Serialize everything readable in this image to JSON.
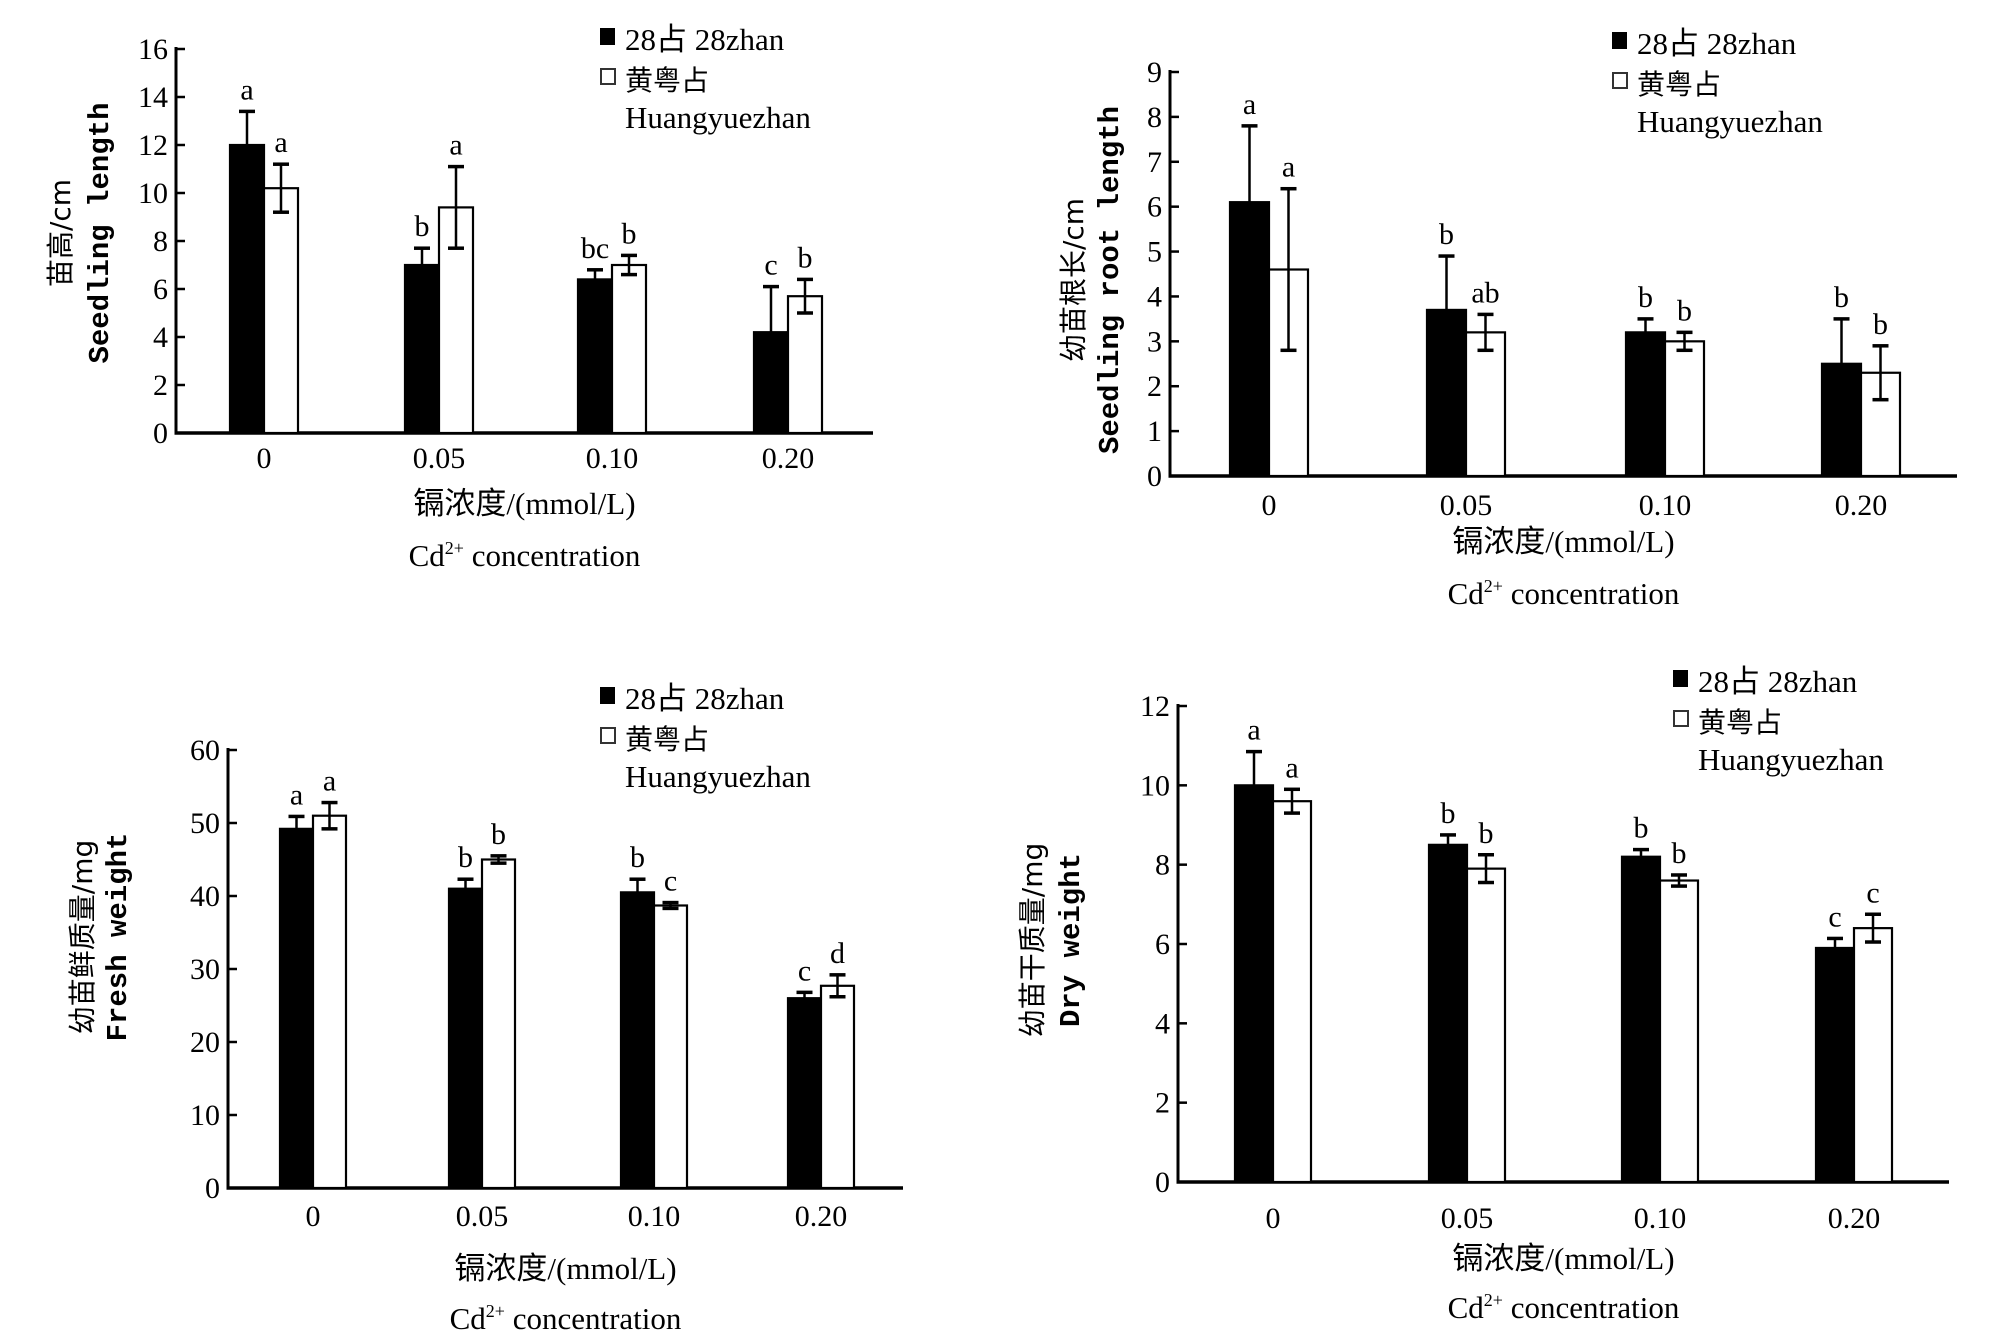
{
  "legend": {
    "series1": "28占 28zhan",
    "series2_zh": "黄粤占",
    "series2_en": "Huangyuezhan"
  },
  "colors": {
    "series1": "#000000",
    "series2": "#ffffff",
    "axis": "#000000"
  },
  "chart_data": [
    {
      "type": "bar",
      "title": "",
      "ylabel_zh": "苗高/cm",
      "ylabel_en": "Seedling length",
      "xlabel_zh": "镉浓度/(mmol/L)",
      "xlabel_en_main": "Cd",
      "xlabel_en_sup": "2+",
      "xlabel_en_rest": " concentration",
      "categories": [
        "0",
        "0.05",
        "0.10",
        "0.20"
      ],
      "ylim": [
        0,
        16
      ],
      "yticks": [
        "0",
        "2",
        "4",
        "6",
        "8",
        "10",
        "12",
        "14",
        "16"
      ],
      "ytick_values": [
        0,
        2,
        4,
        6,
        8,
        10,
        12,
        14,
        16
      ],
      "legend_position": "top-right",
      "series": [
        {
          "name": "28占 28zhan",
          "values": [
            12.0,
            7.0,
            6.4,
            4.2
          ],
          "errors": [
            1.4,
            0.7,
            0.4,
            1.9
          ],
          "letters": [
            "a",
            "b",
            "bc",
            "c"
          ]
        },
        {
          "name": "黄粤占 Huangyuezhan",
          "values": [
            10.2,
            9.4,
            7.0,
            5.7
          ],
          "errors": [
            1.0,
            1.7,
            0.4,
            0.7
          ],
          "letters": [
            "a",
            "a",
            "b",
            "b"
          ]
        }
      ]
    },
    {
      "type": "bar",
      "title": "",
      "ylabel_zh": "幼苗根长/cm",
      "ylabel_en": "Seedling root length",
      "xlabel_zh": "镉浓度/(mmol/L)",
      "xlabel_en_main": "Cd",
      "xlabel_en_sup": "2+",
      "xlabel_en_rest": " concentration",
      "categories": [
        "0",
        "0.05",
        "0.10",
        "0.20"
      ],
      "ylim": [
        0,
        9
      ],
      "yticks": [
        "0",
        "1",
        "2",
        "3",
        "4",
        "5",
        "6",
        "7",
        "8",
        "9"
      ],
      "ytick_values": [
        0,
        1,
        2,
        3,
        4,
        5,
        6,
        7,
        8,
        9
      ],
      "legend_position": "top-right",
      "series": [
        {
          "name": "28占 28zhan",
          "values": [
            6.1,
            3.7,
            3.2,
            2.5
          ],
          "errors": [
            1.7,
            1.2,
            0.3,
            1.0
          ],
          "letters": [
            "a",
            "b",
            "b",
            "b"
          ]
        },
        {
          "name": "黄粤占 Huangyuezhan",
          "values": [
            4.6,
            3.2,
            3.0,
            2.3
          ],
          "errors": [
            1.8,
            0.4,
            0.2,
            0.6
          ],
          "letters": [
            "a",
            "ab",
            "b",
            "b"
          ]
        }
      ]
    },
    {
      "type": "bar",
      "title": "",
      "ylabel_zh": "幼苗鲜质量/mg",
      "ylabel_en": "Fresh weight",
      "xlabel_zh": "镉浓度/(mmol/L)",
      "xlabel_en_main": "Cd",
      "xlabel_en_sup": "2+",
      "xlabel_en_rest": " concentration",
      "categories": [
        "0",
        "0.05",
        "0.10",
        "0.20"
      ],
      "ylim": [
        0,
        60
      ],
      "yticks": [
        "0",
        "10",
        "20",
        "30",
        "40",
        "50",
        "60"
      ],
      "ytick_values": [
        0,
        10,
        20,
        30,
        40,
        50,
        60
      ],
      "legend_position": "top-right",
      "series": [
        {
          "name": "28占 28zhan",
          "values": [
            49.2,
            41.0,
            40.5,
            26.0
          ],
          "errors": [
            1.7,
            1.3,
            1.8,
            0.8
          ],
          "letters": [
            "a",
            "b",
            "b",
            "c"
          ]
        },
        {
          "name": "黄粤占 Huangyuezhan",
          "values": [
            51.0,
            45.0,
            38.7,
            27.7
          ],
          "errors": [
            1.8,
            0.5,
            0.4,
            1.5
          ],
          "letters": [
            "a",
            "b",
            "c",
            "d"
          ]
        }
      ]
    },
    {
      "type": "bar",
      "title": "",
      "ylabel_zh": "幼苗干质量/mg",
      "ylabel_en": "Dry weight",
      "xlabel_zh": "镉浓度/(mmol/L)",
      "xlabel_en_main": "Cd",
      "xlabel_en_sup": "2+",
      "xlabel_en_rest": " concentration",
      "categories": [
        "0",
        "0.05",
        "0.10",
        "0.20"
      ],
      "ylim": [
        0,
        12
      ],
      "yticks": [
        "0",
        "2",
        "4",
        "6",
        "8",
        "10",
        "12"
      ],
      "ytick_values": [
        0,
        2,
        4,
        6,
        8,
        10,
        12
      ],
      "legend_position": "top-right",
      "series": [
        {
          "name": "28占 28zhan",
          "values": [
            10.0,
            8.5,
            8.2,
            5.9
          ],
          "errors": [
            0.85,
            0.25,
            0.18,
            0.24
          ],
          "letters": [
            "a",
            "b",
            "b",
            "c"
          ]
        },
        {
          "name": "黄粤占 Huangyuezhan",
          "values": [
            9.6,
            7.9,
            7.6,
            6.4
          ],
          "errors": [
            0.3,
            0.35,
            0.14,
            0.35
          ],
          "letters": [
            "a",
            "b",
            "b",
            "c"
          ]
        }
      ]
    }
  ]
}
